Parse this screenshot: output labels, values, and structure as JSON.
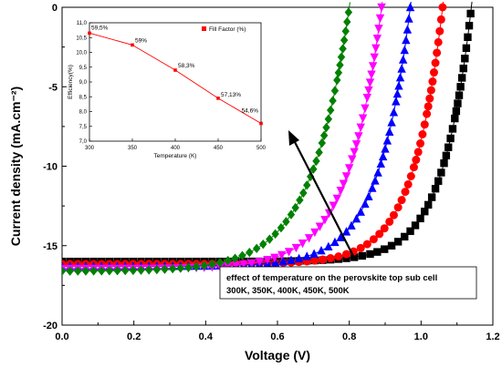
{
  "chart_data": [
    {
      "type": "scatter",
      "xlabel": "Voltage (V)",
      "ylabel": "Current density (mA.cm⁻²)",
      "xlim": [
        0.0,
        1.2
      ],
      "ylim": [
        -20,
        0
      ],
      "x_ticks": [
        "0.0",
        "0.2",
        "0.4",
        "0.6",
        "0.8",
        "1.0",
        "1.2"
      ],
      "y_ticks": [
        "0",
        "-5",
        "-10",
        "-15",
        "-20"
      ],
      "grid": false,
      "series": [
        {
          "color": "#000000",
          "marker": "square",
          "jsc": -16.0,
          "voc": 1.14,
          "n": 12.5
        },
        {
          "color": "#ff0000",
          "marker": "circle",
          "jsc": -16.15,
          "voc": 1.06,
          "n": 12.2
        },
        {
          "color": "#0000ff",
          "marker": "triangle-up",
          "jsc": -16.3,
          "voc": 0.97,
          "n": 11.3
        },
        {
          "color": "#ff00ff",
          "marker": "triangle-down",
          "jsc": -16.45,
          "voc": 0.89,
          "n": 10.6
        },
        {
          "color": "#008000",
          "marker": "diamond",
          "jsc": -16.6,
          "voc": 0.8,
          "n": 9.5
        }
      ],
      "annotation": {
        "line1": "effect of temperature on the perovskite top sub cell",
        "line2": "300K, 350K, 400K, 450K, 500K"
      }
    },
    {
      "type": "line",
      "xlabel": "Temperature (K)",
      "ylabel": "Efficiency(%)",
      "xlim": [
        300,
        500
      ],
      "ylim": [
        7.0,
        11.0
      ],
      "x_ticks": [
        "300",
        "350",
        "400",
        "450",
        "500"
      ],
      "y_ticks": [
        "11,0",
        "10,5",
        "10,0",
        "9,5",
        "9,0",
        "8,5",
        "8,0",
        "7,5",
        "7,0"
      ],
      "x": [
        300,
        350,
        400,
        450,
        500
      ],
      "y": [
        10.65,
        10.25,
        9.4,
        8.45,
        7.6
      ],
      "point_labels": [
        "59,5%",
        "59%",
        "58,3%",
        "57,13%",
        "54,6%"
      ],
      "legend": "Fill Factor (%)",
      "legend_placement": "top-right",
      "color": "#ff0000"
    }
  ]
}
